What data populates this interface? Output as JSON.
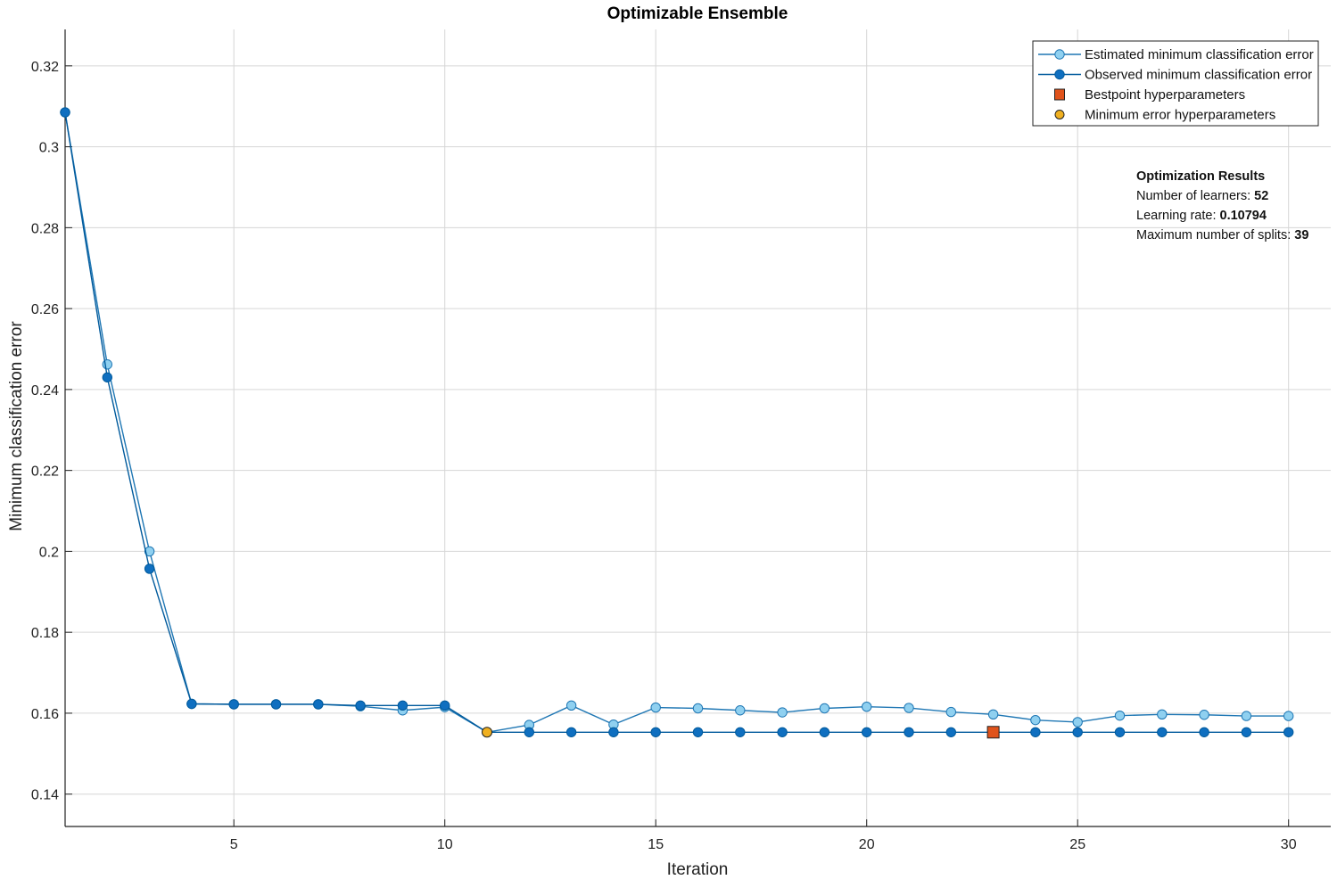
{
  "chart_data": {
    "type": "line",
    "title": "Optimizable Ensemble",
    "xlabel": "Iteration",
    "ylabel": "Minimum classification error",
    "xlim": [
      1,
      31
    ],
    "ylim": [
      0.132,
      0.329
    ],
    "xticks": [
      5,
      10,
      15,
      20,
      25,
      30
    ],
    "yticks": [
      0.14,
      0.16,
      0.18,
      0.2,
      0.22,
      0.24,
      0.26,
      0.28,
      0.3,
      0.32
    ],
    "ytick_labels": [
      "0.14",
      "0.16",
      "0.18",
      "0.2",
      "0.22",
      "0.24",
      "0.26",
      "0.28",
      "0.3",
      "0.32"
    ],
    "grid": true,
    "legend_position": "top-right",
    "x": [
      1,
      2,
      3,
      4,
      5,
      6,
      7,
      8,
      9,
      10,
      11,
      12,
      13,
      14,
      15,
      16,
      17,
      18,
      19,
      20,
      21,
      22,
      23,
      24,
      25,
      26,
      27,
      28,
      29,
      30
    ],
    "series": [
      {
        "name": "Estimated minimum classification error",
        "color": "#1f77b4",
        "marker_fill": "#8fd0f0",
        "values": [
          0.3085,
          0.2462,
          0.2,
          0.1623,
          0.1622,
          0.1622,
          0.1622,
          0.1617,
          0.1607,
          0.1615,
          0.1553,
          0.1571,
          0.1619,
          0.1572,
          0.1614,
          0.1612,
          0.1607,
          0.1602,
          0.1612,
          0.1616,
          0.1613,
          0.1603,
          0.1597,
          0.1583,
          0.1578,
          0.1594,
          0.1597,
          0.1596,
          0.1593,
          0.1593
        ]
      },
      {
        "name": "Observed minimum classification error",
        "color": "#005a9c",
        "marker_fill": "#0f6fc0",
        "values": [
          0.3085,
          0.243,
          0.1957,
          0.1623,
          0.1622,
          0.1622,
          0.1622,
          0.1619,
          0.1619,
          0.1619,
          0.1553,
          0.1553,
          0.1553,
          0.1553,
          0.1553,
          0.1553,
          0.1553,
          0.1553,
          0.1553,
          0.1553,
          0.1553,
          0.1553,
          0.1553,
          0.1553,
          0.1553,
          0.1553,
          0.1553,
          0.1553,
          0.1553,
          0.1553
        ]
      }
    ],
    "points": [
      {
        "name": "Bestpoint hyperparameters",
        "x": 23,
        "y": 0.1553,
        "marker": "square",
        "color": "#e0531b"
      },
      {
        "name": "Minimum error hyperparameters",
        "x": 11,
        "y": 0.1553,
        "marker": "circle",
        "color": "#f0b020"
      }
    ],
    "annotation": {
      "heading": "Optimization Results",
      "lines": [
        {
          "label": "Number of learners: ",
          "value": "52"
        },
        {
          "label": "Learning rate: ",
          "value": "0.10794"
        },
        {
          "label": "Maximum number of splits: ",
          "value": "39"
        }
      ]
    }
  }
}
